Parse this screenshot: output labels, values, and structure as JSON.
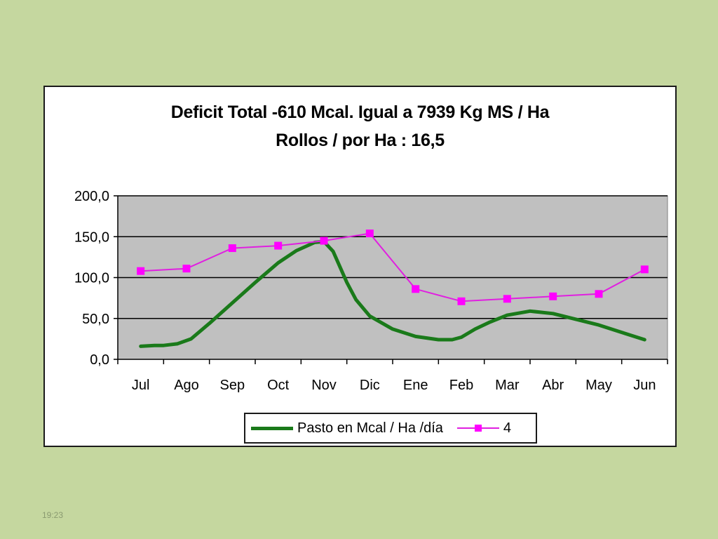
{
  "slide": {
    "timestamp": "19:23"
  },
  "colors": {
    "page_background": "#c5d79f",
    "plot_background": "#c0c0c0",
    "series_pasto": "#1a7a1a",
    "series_4": "#ff00ff"
  },
  "chart_data": {
    "type": "line",
    "title": "Deficit Total -610 Mcal. Igual a 7939 Kg MS / Ha",
    "subtitle": "Rollos / por Ha : 16,5",
    "categories": [
      "Jul",
      "Ago",
      "Sep",
      "Oct",
      "Nov",
      "Dic",
      "Ene",
      "Feb",
      "Mar",
      "Abr",
      "May",
      "Jun"
    ],
    "ylim": [
      0,
      200
    ],
    "yticks": [
      "0,0",
      "50,0",
      "100,0",
      "150,0",
      "200,0"
    ],
    "ytick_values": [
      0,
      50,
      100,
      150,
      200
    ],
    "grid": true,
    "legend_position": "bottom",
    "series": [
      {
        "name": "Pasto en Mcal / Ha /día",
        "style": "thick-line",
        "x": [
          0,
          0.3,
          0.5,
          0.8,
          1.1,
          1.5,
          2.0,
          2.5,
          3.0,
          3.4,
          3.8,
          4.0,
          4.2,
          4.35,
          4.5,
          4.7,
          5.0,
          5.5,
          6.0,
          6.5,
          6.8,
          7.0,
          7.3,
          7.6,
          8.0,
          8.5,
          9.0,
          9.5,
          10.0,
          10.5,
          11.0
        ],
        "values": [
          16,
          17,
          17,
          19,
          25,
          44,
          69,
          94,
          118,
          133,
          143,
          144,
          132,
          113,
          94,
          73,
          53,
          37,
          28,
          24,
          24,
          27,
          37,
          45,
          54,
          59,
          56,
          49,
          42,
          33,
          24
        ]
      },
      {
        "name": "4",
        "style": "line-with-square-markers",
        "x": [
          0,
          1,
          2,
          3,
          4,
          5,
          6,
          7,
          8,
          9,
          10,
          11
        ],
        "values": [
          108,
          111,
          136,
          139,
          145,
          154,
          86,
          71,
          74,
          77,
          80,
          110
        ]
      }
    ]
  }
}
